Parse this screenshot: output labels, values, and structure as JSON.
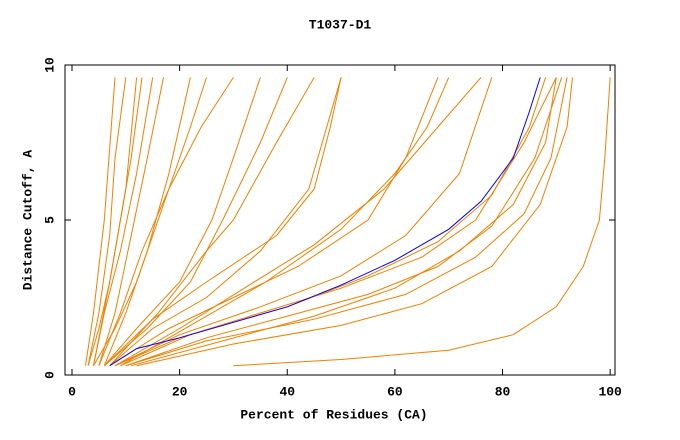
{
  "chart_data": {
    "type": "line",
    "title": "T1037-D1",
    "x_label": "Percent of Residues (CA)",
    "y_label": "Distance Cutoff, A",
    "xlim": [
      -1.3,
      100.9
    ],
    "ylim": [
      0,
      10
    ],
    "xticks": [
      0,
      20,
      40,
      60,
      80,
      100
    ],
    "yticks": [
      0,
      5,
      10
    ],
    "series": [
      {
        "color": "#f08000",
        "x": [
          3,
          5,
          7,
          9,
          11,
          13
        ],
        "values": [
          0.3,
          1.5,
          3,
          5,
          7,
          9.6
        ]
      },
      {
        "color": "#f08000",
        "x": [
          4,
          6,
          9,
          12,
          15
        ],
        "values": [
          0.3,
          2,
          4,
          6.5,
          9.6
        ]
      },
      {
        "color": "#f08000",
        "x": [
          5,
          8,
          11,
          14,
          17
        ],
        "values": [
          0.3,
          2,
          4.5,
          7,
          9.6
        ]
      },
      {
        "color": "#f08000",
        "x": [
          3,
          5,
          7,
          8,
          10
        ],
        "values": [
          0.3,
          2,
          4.5,
          7,
          9.6
        ]
      },
      {
        "color": "#f08000",
        "x": [
          6,
          10,
          14,
          18,
          22
        ],
        "values": [
          0.3,
          2,
          4,
          6.5,
          9.6
        ]
      },
      {
        "color": "#f08000",
        "x": [
          4,
          8,
          12,
          17,
          22,
          25
        ],
        "values": [
          0.3,
          1.5,
          3,
          5.5,
          8,
          9.6
        ]
      },
      {
        "color": "#f08000",
        "x": [
          5,
          9,
          13,
          18,
          24,
          30
        ],
        "values": [
          0.3,
          2,
          4,
          6,
          8,
          9.6
        ]
      },
      {
        "color": "#f08000",
        "x": [
          6,
          12,
          20,
          26,
          30,
          35
        ],
        "values": [
          0.3,
          1.5,
          3,
          5,
          7,
          9.6
        ]
      },
      {
        "color": "#f08000",
        "x": [
          4,
          7,
          10,
          12
        ],
        "values": [
          0.3,
          3,
          6,
          9.6
        ]
      },
      {
        "color": "#f08000",
        "x": [
          2.5,
          4,
          6,
          8
        ],
        "values": [
          0.3,
          2,
          5,
          9.6
        ]
      },
      {
        "color": "#f08000",
        "x": [
          7,
          15,
          25,
          35,
          44,
          50
        ],
        "values": [
          0.3,
          1.5,
          2.5,
          4,
          6,
          9.6
        ]
      },
      {
        "color": "#f08000",
        "x": [
          6,
          15,
          25,
          38,
          45,
          48,
          50
        ],
        "values": [
          0.3,
          1.8,
          3,
          4.5,
          6,
          8,
          9.6
        ]
      },
      {
        "color": "#f08000",
        "x": [
          7,
          18,
          30,
          42,
          55,
          62,
          68
        ],
        "values": [
          0.3,
          1.5,
          2.5,
          3.5,
          5,
          7,
          9.6
        ]
      },
      {
        "color": "#f08000",
        "x": [
          8,
          20,
          35,
          50,
          62,
          72,
          78
        ],
        "values": [
          0.3,
          1.3,
          2.2,
          3.2,
          4.5,
          6.5,
          9.6
        ]
      },
      {
        "color": "#f08000",
        "x": [
          8,
          20,
          35,
          50,
          65,
          75,
          84,
          90
        ],
        "values": [
          0.3,
          1.2,
          2,
          2.8,
          3.8,
          5,
          7.5,
          9.6
        ]
      },
      {
        "color": "#f08000",
        "x": [
          10,
          25,
          40,
          55,
          68,
          78,
          86,
          91
        ],
        "values": [
          0.3,
          1.2,
          1.9,
          2.6,
          3.5,
          4.8,
          7,
          9.6
        ]
      },
      {
        "color": "#f08000",
        "x": [
          10,
          25,
          45,
          62,
          75,
          84,
          89,
          92
        ],
        "values": [
          0.3,
          1.1,
          1.8,
          2.6,
          3.8,
          5.2,
          7,
          9.6
        ]
      },
      {
        "color": "#f08000",
        "x": [
          12,
          30,
          50,
          65,
          78,
          87,
          92,
          93
        ],
        "values": [
          0.3,
          1,
          1.6,
          2.3,
          3.5,
          5.5,
          8,
          9.6
        ]
      },
      {
        "color": "#f08000",
        "x": [
          9,
          22,
          40,
          55,
          68,
          78,
          85,
          88
        ],
        "values": [
          0.3,
          1.3,
          2.2,
          3.2,
          4.3,
          5.8,
          8,
          9.6
        ]
      },
      {
        "color": "#f08000",
        "x": [
          8,
          20,
          32,
          45,
          58,
          68,
          76
        ],
        "values": [
          0.3,
          1.5,
          2.8,
          4.2,
          6,
          8,
          9.6
        ]
      },
      {
        "color": "#f08000",
        "x": [
          6,
          14,
          22,
          28,
          35,
          40
        ],
        "values": [
          0.3,
          1.5,
          3,
          5,
          7.5,
          9.6
        ]
      },
      {
        "color": "#f08000",
        "x": [
          30,
          50,
          70,
          82,
          90,
          95,
          98,
          99,
          100
        ],
        "values": [
          0.3,
          0.5,
          0.8,
          1.3,
          2.2,
          3.5,
          5,
          7,
          9.6
        ]
      },
      {
        "color": "#f08000",
        "x": [
          7,
          16,
          25,
          30,
          38,
          45
        ],
        "values": [
          0.3,
          2,
          4,
          5,
          7.5,
          9.6
        ]
      },
      {
        "color": "#f08000",
        "x": [
          9,
          22,
          36,
          50,
          60,
          66,
          70
        ],
        "values": [
          0.3,
          1.6,
          3,
          4.7,
          6.5,
          8,
          9.6
        ]
      },
      {
        "color": "#f08000",
        "x": [
          11,
          28,
          45,
          60,
          72,
          82,
          88,
          90
        ],
        "values": [
          0.3,
          1.1,
          1.9,
          2.8,
          4,
          5.5,
          7.5,
          9.6
        ]
      },
      {
        "color": "#0000ff",
        "x": [
          7,
          12,
          20,
          30,
          40,
          50,
          60,
          70,
          76,
          82,
          85,
          87
        ],
        "values": [
          0.3,
          0.85,
          1.2,
          1.7,
          2.2,
          2.9,
          3.7,
          4.7,
          5.6,
          7,
          8.5,
          9.6
        ]
      }
    ]
  }
}
